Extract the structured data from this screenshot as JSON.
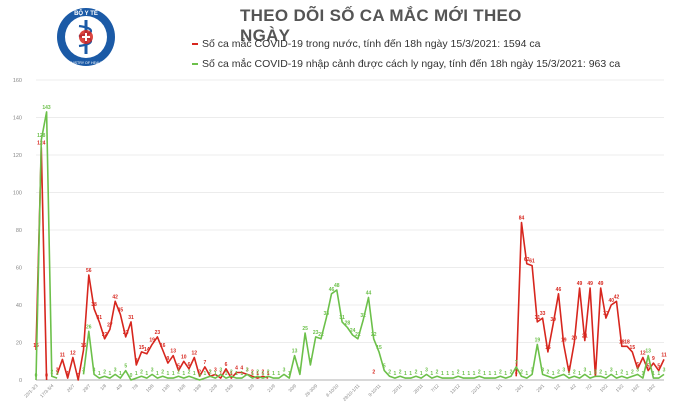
{
  "header": {
    "title": "THEO DÕI SỐ CA MẮC MỚI THEO NGÀY",
    "logo_text_top": "BỘ Y TẾ",
    "logo_text_bottom": "MINISTRY OF HEALTH"
  },
  "colors": {
    "domestic": "#d7261e",
    "imported": "#6cc04a",
    "axis": "#999999",
    "grid": "#e6e6e6",
    "logo": "#1b5aa6"
  },
  "chart_data": {
    "type": "line",
    "ylim": [
      0,
      160
    ],
    "yticks": [
      0,
      20,
      40,
      60,
      80,
      100,
      120,
      140,
      160
    ],
    "grid": "horizontal",
    "x_count": 120,
    "xticks": [
      {
        "i": 0,
        "label": "23/1-3/3"
      },
      {
        "i": 3,
        "label": "17/3-5/4"
      },
      {
        "i": 7,
        "label": "26/7"
      },
      {
        "i": 10,
        "label": "29/7"
      },
      {
        "i": 13,
        "label": "1/8"
      },
      {
        "i": 16,
        "label": "4/8"
      },
      {
        "i": 19,
        "label": "7/8"
      },
      {
        "i": 22,
        "label": "10/8"
      },
      {
        "i": 25,
        "label": "13/8"
      },
      {
        "i": 28,
        "label": "16/8"
      },
      {
        "i": 31,
        "label": "19/8"
      },
      {
        "i": 34,
        "label": "22/8"
      },
      {
        "i": 37,
        "label": "25/8"
      },
      {
        "i": 41,
        "label": "2/9"
      },
      {
        "i": 45,
        "label": "21/9"
      },
      {
        "i": 49,
        "label": "30/9"
      },
      {
        "i": 53,
        "label": "28-30/9"
      },
      {
        "i": 57,
        "label": "8-10/10"
      },
      {
        "i": 61,
        "label": "29/10-1/11"
      },
      {
        "i": 65,
        "label": "9-10/11"
      },
      {
        "i": 69,
        "label": "20/11"
      },
      {
        "i": 73,
        "label": "28/11"
      },
      {
        "i": 76,
        "label": "7/12"
      },
      {
        "i": 80,
        "label": "13/12"
      },
      {
        "i": 84,
        "label": "22/12"
      },
      {
        "i": 88,
        "label": "1/1"
      },
      {
        "i": 92,
        "label": "26/1"
      },
      {
        "i": 96,
        "label": "29/1"
      },
      {
        "i": 99,
        "label": "1/2"
      },
      {
        "i": 102,
        "label": "4/2"
      },
      {
        "i": 105,
        "label": "7/2"
      },
      {
        "i": 108,
        "label": "10/2"
      },
      {
        "i": 111,
        "label": "13/2"
      },
      {
        "i": 114,
        "label": "16/2"
      },
      {
        "i": 117,
        "label": "19/2"
      }
    ],
    "series": [
      {
        "name": "Số ca mắc COVID-19 trong nước, tính đến 18h ngày 15/3/2021: 1594 ca",
        "key": "domestic",
        "points": [
          {
            "x": 0,
            "y": 16
          },
          {
            "x": 1,
            "y": 124
          },
          {
            "x": 2,
            "y": 0
          },
          {
            "x": 4,
            "y": 3
          },
          {
            "x": 5,
            "y": 11
          },
          {
            "x": 6,
            "y": 1
          },
          {
            "x": 7,
            "y": 12
          },
          {
            "x": 8,
            "y": 0
          },
          {
            "x": 9,
            "y": 16
          },
          {
            "x": 10,
            "y": 56
          },
          {
            "x": 11,
            "y": 38
          },
          {
            "x": 12,
            "y": 31
          },
          {
            "x": 13,
            "y": 22
          },
          {
            "x": 14,
            "y": 27
          },
          {
            "x": 15,
            "y": 42
          },
          {
            "x": 16,
            "y": 35
          },
          {
            "x": 17,
            "y": 23
          },
          {
            "x": 18,
            "y": 31
          },
          {
            "x": 19,
            "y": 8
          },
          {
            "x": 20,
            "y": 15
          },
          {
            "x": 21,
            "y": 14
          },
          {
            "x": 22,
            "y": 19
          },
          {
            "x": 23,
            "y": 23
          },
          {
            "x": 24,
            "y": 16
          },
          {
            "x": 25,
            "y": 9
          },
          {
            "x": 26,
            "y": 13
          },
          {
            "x": 27,
            "y": 5
          },
          {
            "x": 28,
            "y": 10
          },
          {
            "x": 29,
            "y": 6
          },
          {
            "x": 30,
            "y": 12
          },
          {
            "x": 31,
            "y": 2
          },
          {
            "x": 32,
            "y": 7
          },
          {
            "x": 33,
            "y": 2
          },
          {
            "x": 34,
            "y": 3
          },
          {
            "x": 35,
            "y": 1
          },
          {
            "x": 36,
            "y": 6
          },
          {
            "x": 37,
            "y": 1
          },
          {
            "x": 38,
            "y": 4
          },
          {
            "x": 39,
            "y": 4
          },
          {
            "x": 40,
            "y": 3
          },
          {
            "x": 41,
            "y": 2
          },
          {
            "x": 42,
            "y": 1
          },
          {
            "x": 43,
            "y": 2
          },
          {
            "x": 44,
            "y": 1
          },
          {
            "x": 64,
            "y": 2
          },
          {
            "x": 91,
            "y": 2
          },
          {
            "x": 92,
            "y": 84
          },
          {
            "x": 93,
            "y": 62
          },
          {
            "x": 94,
            "y": 61
          },
          {
            "x": 95,
            "y": 31
          },
          {
            "x": 96,
            "y": 33
          },
          {
            "x": 97,
            "y": 15
          },
          {
            "x": 98,
            "y": 30
          },
          {
            "x": 99,
            "y": 46
          },
          {
            "x": 100,
            "y": 19
          },
          {
            "x": 101,
            "y": 4
          },
          {
            "x": 102,
            "y": 20
          },
          {
            "x": 103,
            "y": 49
          },
          {
            "x": 104,
            "y": 21
          },
          {
            "x": 105,
            "y": 49
          },
          {
            "x": 106,
            "y": 2
          },
          {
            "x": 107,
            "y": 49
          },
          {
            "x": 108,
            "y": 33
          },
          {
            "x": 109,
            "y": 40
          },
          {
            "x": 110,
            "y": 42
          },
          {
            "x": 111,
            "y": 18
          },
          {
            "x": 112,
            "y": 18
          },
          {
            "x": 113,
            "y": 15
          },
          {
            "x": 114,
            "y": 6
          },
          {
            "x": 115,
            "y": 12
          },
          {
            "x": 116,
            "y": 5
          },
          {
            "x": 117,
            "y": 9
          },
          {
            "x": 118,
            "y": 5
          },
          {
            "x": 119,
            "y": 11
          }
        ]
      },
      {
        "name": "Số ca mắc COVID-19 nhập cảnh được cách ly ngay, tính đến 18h ngày 15/3/2021: 963 ca",
        "key": "imported",
        "points": [
          {
            "x": 0,
            "y": 0
          },
          {
            "x": 1,
            "y": 128
          },
          {
            "x": 2,
            "y": 143
          },
          {
            "x": 3,
            "y": 2
          },
          {
            "x": 4,
            "y": 1
          },
          {
            "x": 9,
            "y": 3
          },
          {
            "x": 10,
            "y": 26
          },
          {
            "x": 11,
            "y": 3
          },
          {
            "x": 12,
            "y": 1
          },
          {
            "x": 13,
            "y": 2
          },
          {
            "x": 14,
            "y": 1
          },
          {
            "x": 15,
            "y": 3
          },
          {
            "x": 16,
            "y": 1
          },
          {
            "x": 17,
            "y": 5
          },
          {
            "x": 18,
            "y": 0
          },
          {
            "x": 19,
            "y": 1
          },
          {
            "x": 20,
            "y": 2
          },
          {
            "x": 21,
            "y": 1
          },
          {
            "x": 22,
            "y": 3
          },
          {
            "x": 23,
            "y": 1
          },
          {
            "x": 24,
            "y": 2
          },
          {
            "x": 25,
            "y": 1
          },
          {
            "x": 26,
            "y": 1
          },
          {
            "x": 27,
            "y": 2
          },
          {
            "x": 28,
            "y": 1
          },
          {
            "x": 29,
            "y": 2
          },
          {
            "x": 30,
            "y": 1
          },
          {
            "x": 31,
            "y": 0
          },
          {
            "x": 32,
            "y": 1
          },
          {
            "x": 33,
            "y": 2
          },
          {
            "x": 34,
            "y": 1
          },
          {
            "x": 35,
            "y": 3
          },
          {
            "x": 36,
            "y": 1
          },
          {
            "x": 37,
            "y": 2
          },
          {
            "x": 38,
            "y": 1
          },
          {
            "x": 39,
            "y": 1
          },
          {
            "x": 40,
            "y": 3
          },
          {
            "x": 41,
            "y": 1
          },
          {
            "x": 42,
            "y": 2
          },
          {
            "x": 43,
            "y": 1
          },
          {
            "x": 44,
            "y": 2
          },
          {
            "x": 45,
            "y": 1
          },
          {
            "x": 46,
            "y": 1
          },
          {
            "x": 47,
            "y": 3
          },
          {
            "x": 48,
            "y": 1
          },
          {
            "x": 49,
            "y": 13
          },
          {
            "x": 50,
            "y": 3
          },
          {
            "x": 51,
            "y": 25
          },
          {
            "x": 52,
            "y": 8
          },
          {
            "x": 53,
            "y": 23
          },
          {
            "x": 54,
            "y": 22
          },
          {
            "x": 55,
            "y": 33
          },
          {
            "x": 56,
            "y": 46
          },
          {
            "x": 57,
            "y": 48
          },
          {
            "x": 58,
            "y": 31
          },
          {
            "x": 59,
            "y": 28
          },
          {
            "x": 60,
            "y": 24
          },
          {
            "x": 61,
            "y": 22
          },
          {
            "x": 62,
            "y": 32
          },
          {
            "x": 63,
            "y": 44
          },
          {
            "x": 64,
            "y": 22
          },
          {
            "x": 65,
            "y": 15
          },
          {
            "x": 66,
            "y": 5
          },
          {
            "x": 67,
            "y": 2
          },
          {
            "x": 68,
            "y": 1
          },
          {
            "x": 69,
            "y": 2
          },
          {
            "x": 70,
            "y": 1
          },
          {
            "x": 71,
            "y": 1
          },
          {
            "x": 72,
            "y": 2
          },
          {
            "x": 73,
            "y": 1
          },
          {
            "x": 74,
            "y": 3
          },
          {
            "x": 75,
            "y": 1
          },
          {
            "x": 76,
            "y": 2
          },
          {
            "x": 77,
            "y": 1
          },
          {
            "x": 78,
            "y": 1
          },
          {
            "x": 79,
            "y": 1
          },
          {
            "x": 80,
            "y": 2
          },
          {
            "x": 81,
            "y": 1
          },
          {
            "x": 82,
            "y": 1
          },
          {
            "x": 83,
            "y": 1
          },
          {
            "x": 84,
            "y": 2
          },
          {
            "x": 85,
            "y": 1
          },
          {
            "x": 86,
            "y": 1
          },
          {
            "x": 87,
            "y": 1
          },
          {
            "x": 88,
            "y": 2
          },
          {
            "x": 89,
            "y": 1
          },
          {
            "x": 90,
            "y": 2
          },
          {
            "x": 91,
            "y": 7
          },
          {
            "x": 92,
            "y": 2
          },
          {
            "x": 93,
            "y": 1
          },
          {
            "x": 94,
            "y": 3
          },
          {
            "x": 95,
            "y": 19
          },
          {
            "x": 96,
            "y": 3
          },
          {
            "x": 97,
            "y": 2
          },
          {
            "x": 98,
            "y": 1
          },
          {
            "x": 99,
            "y": 2
          },
          {
            "x": 100,
            "y": 3
          },
          {
            "x": 101,
            "y": 1
          },
          {
            "x": 102,
            "y": 2
          },
          {
            "x": 103,
            "y": 1
          },
          {
            "x": 104,
            "y": 3
          },
          {
            "x": 105,
            "y": 1
          },
          {
            "x": 106,
            "y": 2
          },
          {
            "x": 107,
            "y": 2
          },
          {
            "x": 108,
            "y": 1
          },
          {
            "x": 109,
            "y": 3
          },
          {
            "x": 110,
            "y": 1
          },
          {
            "x": 111,
            "y": 2
          },
          {
            "x": 112,
            "y": 1
          },
          {
            "x": 113,
            "y": 2
          },
          {
            "x": 114,
            "y": 3
          },
          {
            "x": 115,
            "y": 1
          },
          {
            "x": 116,
            "y": 13
          },
          {
            "x": 117,
            "y": 1
          },
          {
            "x": 118,
            "y": 1
          },
          {
            "x": 119,
            "y": 3
          }
        ]
      }
    ]
  }
}
